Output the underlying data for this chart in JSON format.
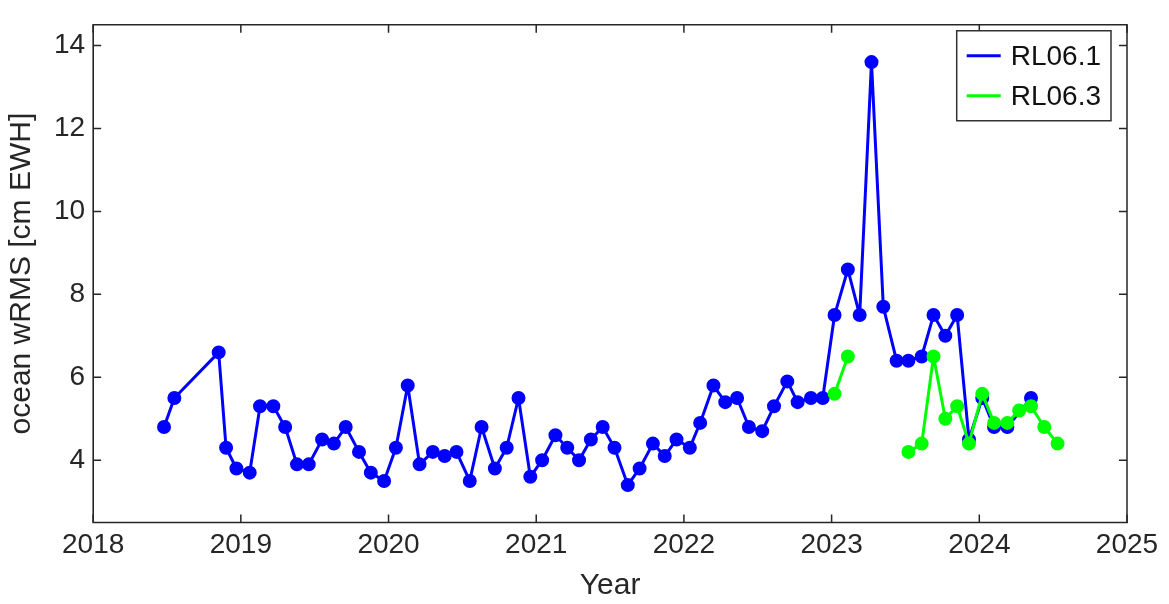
{
  "chart_data": {
    "type": "line",
    "xlabel": "Year",
    "ylabel": "ocean wRMS [cm EWH]",
    "xlim": [
      2018,
      2025
    ],
    "xticks": [
      2018,
      2019,
      2020,
      2021,
      2022,
      2023,
      2024,
      2025
    ],
    "ylim": [
      2.5,
      14.5
    ],
    "yticks": [
      4,
      6,
      8,
      10,
      12,
      14
    ],
    "grid": false,
    "legend": "top right",
    "marker": "circle",
    "line_style": "solid",
    "series": [
      {
        "name": "RL06.1",
        "color": "#0000ff",
        "x": [
          2018.48,
          2018.55,
          2018.85,
          2018.9,
          2018.97,
          2019.06,
          2019.13,
          2019.22,
          2019.3,
          2019.38,
          2019.46,
          2019.55,
          2019.63,
          2019.71,
          2019.8,
          2019.88,
          2019.97,
          2020.05,
          2020.13,
          2020.21,
          2020.3,
          2020.38,
          2020.46,
          2020.55,
          2020.63,
          2020.72,
          2020.8,
          2020.88,
          2020.96,
          2021.04,
          2021.13,
          2021.21,
          2021.29,
          2021.37,
          2021.45,
          2021.53,
          2021.62,
          2021.7,
          2021.79,
          2021.87,
          2021.95,
          2022.04,
          2022.11,
          2022.2,
          2022.28,
          2022.36,
          2022.44,
          2022.53,
          2022.61,
          2022.7,
          2022.77,
          2022.86,
          2022.94,
          2023.02,
          2023.11,
          2023.19,
          2023.27,
          2023.35,
          2023.44,
          2023.52,
          2023.61,
          2023.69,
          2023.77,
          2023.85,
          2023.93,
          2024.02,
          2024.1,
          2024.19,
          2024.35
        ],
        "values": [
          4.8,
          5.5,
          6.6,
          4.3,
          3.8,
          3.7,
          5.3,
          5.3,
          4.8,
          3.9,
          3.9,
          4.5,
          4.4,
          4.8,
          4.2,
          3.7,
          3.5,
          4.3,
          5.8,
          3.9,
          4.2,
          4.1,
          4.2,
          3.5,
          4.8,
          3.8,
          4.3,
          5.5,
          3.6,
          4.0,
          4.6,
          4.3,
          4.0,
          4.5,
          4.8,
          4.3,
          3.4,
          3.8,
          4.4,
          4.1,
          4.5,
          4.3,
          4.9,
          5.8,
          5.4,
          5.5,
          4.8,
          4.7,
          5.3,
          5.9,
          5.4,
          5.5,
          5.5,
          7.5,
          8.6,
          7.5,
          13.6,
          7.7,
          6.4,
          6.4,
          6.5,
          7.5,
          7.0,
          7.5,
          4.5,
          5.5,
          4.8,
          4.8,
          5.5
        ]
      },
      {
        "name": "RL06.3",
        "color": "#00ff00",
        "x": [
          2023.02,
          2023.11,
          2023.19,
          2023.52,
          2023.61,
          2023.69,
          2023.77,
          2023.85,
          2023.93,
          2024.02,
          2024.1,
          2024.19,
          2024.27,
          2024.35,
          2024.44,
          2024.53
        ],
        "values": [
          5.6,
          6.5,
          null,
          4.2,
          4.4,
          6.5,
          5.0,
          5.3,
          4.4,
          5.6,
          4.9,
          4.9,
          5.2,
          5.3,
          4.8,
          4.4
        ]
      }
    ]
  }
}
